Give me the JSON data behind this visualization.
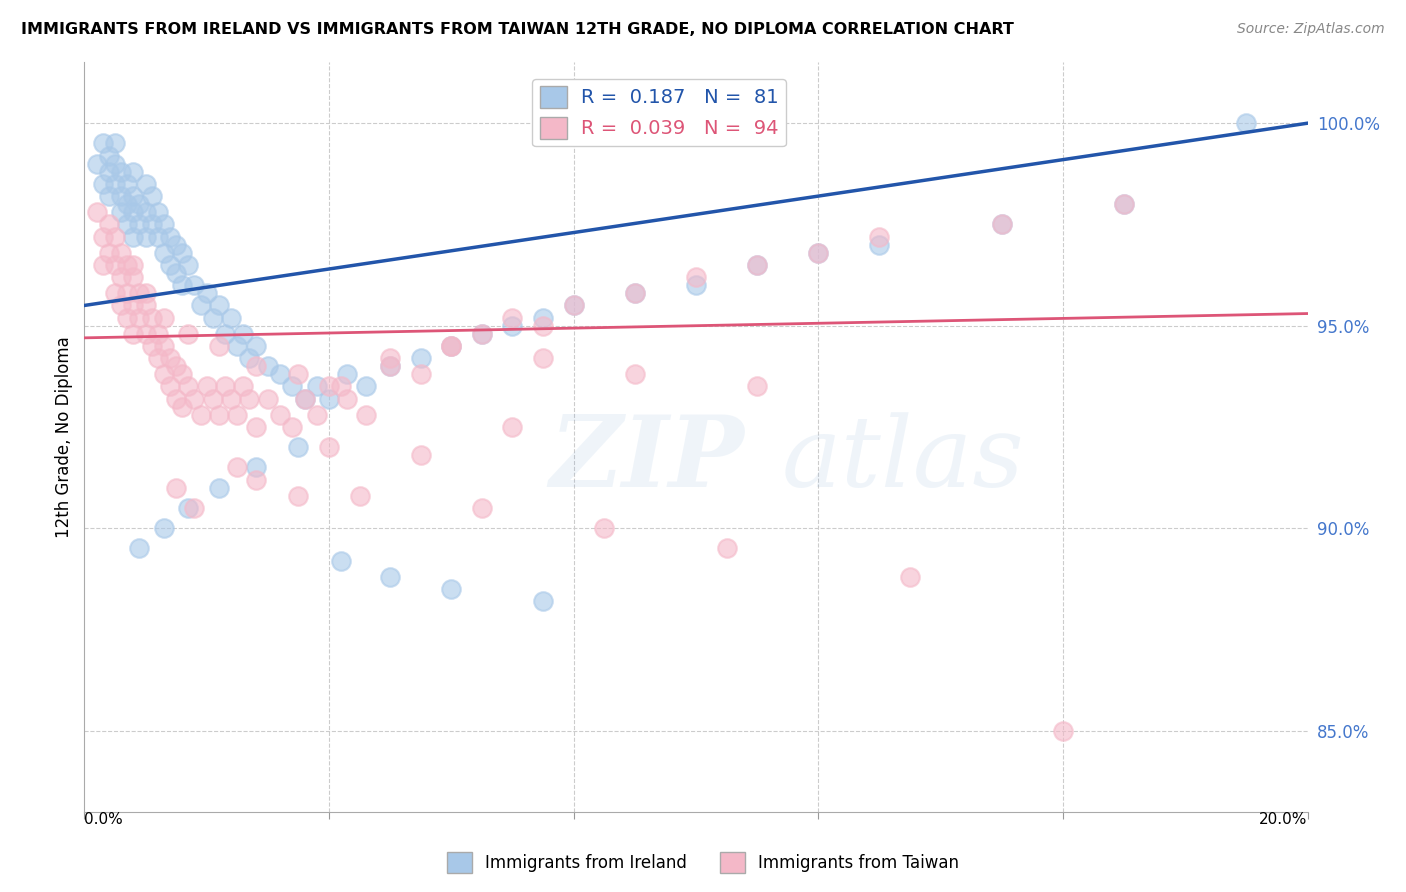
{
  "title": "IMMIGRANTS FROM IRELAND VS IMMIGRANTS FROM TAIWAN 12TH GRADE, NO DIPLOMA CORRELATION CHART",
  "source": "Source: ZipAtlas.com",
  "ylabel": "12th Grade, No Diploma",
  "ytick_values": [
    0.85,
    0.9,
    0.95,
    1.0
  ],
  "xlim": [
    0.0,
    0.2
  ],
  "ylim": [
    0.83,
    1.015
  ],
  "ireland_R": 0.187,
  "ireland_N": 81,
  "taiwan_R": 0.039,
  "taiwan_N": 94,
  "ireland_color": "#a8c8e8",
  "taiwan_color": "#f4b8c8",
  "ireland_line_color": "#2255aa",
  "taiwan_line_color": "#dd5577",
  "legend_label_ireland": "Immigrants from Ireland",
  "legend_label_taiwan": "Immigrants from Taiwan",
  "ireland_line_x0": 0.0,
  "ireland_line_y0": 0.955,
  "ireland_line_x1": 0.2,
  "ireland_line_y1": 1.0,
  "taiwan_line_x0": 0.0,
  "taiwan_line_y0": 0.947,
  "taiwan_line_x1": 0.2,
  "taiwan_line_y1": 0.953,
  "ireland_scatter_x": [
    0.002,
    0.003,
    0.003,
    0.004,
    0.004,
    0.004,
    0.005,
    0.005,
    0.005,
    0.006,
    0.006,
    0.006,
    0.007,
    0.007,
    0.007,
    0.008,
    0.008,
    0.008,
    0.008,
    0.009,
    0.009,
    0.01,
    0.01,
    0.01,
    0.011,
    0.011,
    0.012,
    0.012,
    0.013,
    0.013,
    0.014,
    0.014,
    0.015,
    0.015,
    0.016,
    0.016,
    0.017,
    0.018,
    0.019,
    0.02,
    0.021,
    0.022,
    0.023,
    0.024,
    0.025,
    0.026,
    0.027,
    0.028,
    0.03,
    0.032,
    0.034,
    0.036,
    0.038,
    0.04,
    0.043,
    0.046,
    0.05,
    0.055,
    0.06,
    0.065,
    0.07,
    0.075,
    0.08,
    0.09,
    0.1,
    0.11,
    0.12,
    0.13,
    0.15,
    0.17,
    0.19,
    0.009,
    0.013,
    0.017,
    0.022,
    0.028,
    0.035,
    0.042,
    0.05,
    0.06,
    0.075
  ],
  "ireland_scatter_y": [
    0.99,
    0.995,
    0.985,
    0.992,
    0.988,
    0.982,
    0.995,
    0.99,
    0.985,
    0.988,
    0.982,
    0.978,
    0.985,
    0.98,
    0.975,
    0.988,
    0.982,
    0.978,
    0.972,
    0.98,
    0.975,
    0.985,
    0.978,
    0.972,
    0.982,
    0.975,
    0.978,
    0.972,
    0.975,
    0.968,
    0.972,
    0.965,
    0.97,
    0.963,
    0.968,
    0.96,
    0.965,
    0.96,
    0.955,
    0.958,
    0.952,
    0.955,
    0.948,
    0.952,
    0.945,
    0.948,
    0.942,
    0.945,
    0.94,
    0.938,
    0.935,
    0.932,
    0.935,
    0.932,
    0.938,
    0.935,
    0.94,
    0.942,
    0.945,
    0.948,
    0.95,
    0.952,
    0.955,
    0.958,
    0.96,
    0.965,
    0.968,
    0.97,
    0.975,
    0.98,
    1.0,
    0.895,
    0.9,
    0.905,
    0.91,
    0.915,
    0.92,
    0.892,
    0.888,
    0.885,
    0.882
  ],
  "taiwan_scatter_x": [
    0.002,
    0.003,
    0.003,
    0.004,
    0.004,
    0.005,
    0.005,
    0.005,
    0.006,
    0.006,
    0.006,
    0.007,
    0.007,
    0.007,
    0.008,
    0.008,
    0.008,
    0.009,
    0.009,
    0.01,
    0.01,
    0.011,
    0.011,
    0.012,
    0.012,
    0.013,
    0.013,
    0.014,
    0.014,
    0.015,
    0.015,
    0.016,
    0.016,
    0.017,
    0.018,
    0.019,
    0.02,
    0.021,
    0.022,
    0.023,
    0.024,
    0.025,
    0.026,
    0.027,
    0.028,
    0.03,
    0.032,
    0.034,
    0.036,
    0.038,
    0.04,
    0.043,
    0.046,
    0.05,
    0.055,
    0.06,
    0.065,
    0.07,
    0.075,
    0.08,
    0.09,
    0.1,
    0.11,
    0.12,
    0.13,
    0.15,
    0.17,
    0.008,
    0.01,
    0.013,
    0.017,
    0.022,
    0.028,
    0.035,
    0.042,
    0.05,
    0.06,
    0.075,
    0.09,
    0.11,
    0.04,
    0.055,
    0.07,
    0.015,
    0.025,
    0.035,
    0.018,
    0.028,
    0.045,
    0.065,
    0.085,
    0.105,
    0.135,
    0.16
  ],
  "taiwan_scatter_y": [
    0.978,
    0.972,
    0.965,
    0.975,
    0.968,
    0.972,
    0.965,
    0.958,
    0.968,
    0.962,
    0.955,
    0.965,
    0.958,
    0.952,
    0.962,
    0.955,
    0.948,
    0.958,
    0.952,
    0.955,
    0.948,
    0.952,
    0.945,
    0.948,
    0.942,
    0.945,
    0.938,
    0.942,
    0.935,
    0.94,
    0.932,
    0.938,
    0.93,
    0.935,
    0.932,
    0.928,
    0.935,
    0.932,
    0.928,
    0.935,
    0.932,
    0.928,
    0.935,
    0.932,
    0.925,
    0.932,
    0.928,
    0.925,
    0.932,
    0.928,
    0.935,
    0.932,
    0.928,
    0.942,
    0.938,
    0.945,
    0.948,
    0.952,
    0.95,
    0.955,
    0.958,
    0.962,
    0.965,
    0.968,
    0.972,
    0.975,
    0.98,
    0.965,
    0.958,
    0.952,
    0.948,
    0.945,
    0.94,
    0.938,
    0.935,
    0.94,
    0.945,
    0.942,
    0.938,
    0.935,
    0.92,
    0.918,
    0.925,
    0.91,
    0.915,
    0.908,
    0.905,
    0.912,
    0.908,
    0.905,
    0.9,
    0.895,
    0.888,
    0.85
  ]
}
